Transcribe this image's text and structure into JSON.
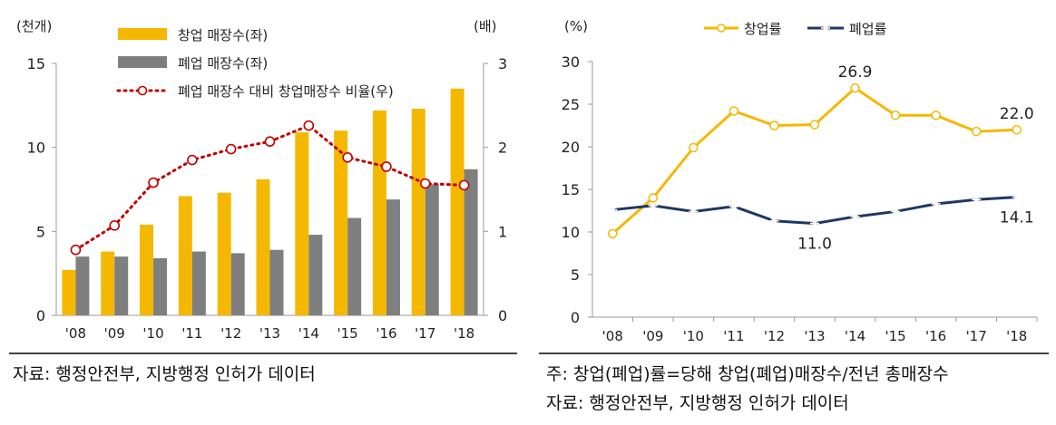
{
  "left": {
    "chart_data": {
      "type": "bar",
      "categories": [
        "'08",
        "'09",
        "'10",
        "'11",
        "'12",
        "'13",
        "'14",
        "'15",
        "'16",
        "'17",
        "'18"
      ],
      "y_left_unit": "(천개)",
      "y_right_unit": "(배)",
      "ylim_left": [
        0,
        15
      ],
      "ylim_right": [
        0,
        3
      ],
      "yticks_left": [
        "0",
        "5",
        "10",
        "15"
      ],
      "yticks_right": [
        "0",
        "1",
        "2",
        "3"
      ],
      "series": [
        {
          "name": "창업 매장수(좌)",
          "kind": "bar",
          "axis": "left",
          "color": "#F5B800",
          "values": [
            2.7,
            3.8,
            5.4,
            7.1,
            7.3,
            8.1,
            10.9,
            11.0,
            12.2,
            12.3,
            13.5
          ]
        },
        {
          "name": "폐업 매장수(좌)",
          "kind": "bar",
          "axis": "left",
          "color": "#7F7F7F",
          "values": [
            3.5,
            3.5,
            3.4,
            3.8,
            3.7,
            3.9,
            4.8,
            5.8,
            6.9,
            7.8,
            8.7
          ]
        },
        {
          "name": "폐업 매장수 대비 창업매장수 비율(우)",
          "kind": "line",
          "axis": "right",
          "color": "#C00000",
          "values": [
            0.78,
            1.07,
            1.58,
            1.85,
            1.98,
            2.07,
            2.26,
            1.88,
            1.77,
            1.57,
            1.55
          ]
        }
      ]
    },
    "source": "자료: 행정안전부, 지방행정 인허가 데이터"
  },
  "right": {
    "chart_data": {
      "type": "line",
      "categories": [
        "'08",
        "'09",
        "'10",
        "'11",
        "'12",
        "'13",
        "'14",
        "'15",
        "'16",
        "'17",
        "'18"
      ],
      "y_unit": "(%)",
      "ylim": [
        0,
        30
      ],
      "yticks": [
        "0",
        "5",
        "10",
        "15",
        "20",
        "25",
        "30"
      ],
      "series": [
        {
          "name": "창업률",
          "color": "#F5B800",
          "marker": "circle",
          "values": [
            9.8,
            14.0,
            19.9,
            24.2,
            22.5,
            22.6,
            26.9,
            23.7,
            23.7,
            21.8,
            22.0
          ]
        },
        {
          "name": "폐업률",
          "color": "#1F3864",
          "marker": "star",
          "values": [
            12.6,
            13.1,
            12.4,
            13.0,
            11.3,
            11.0,
            11.8,
            12.4,
            13.3,
            13.8,
            14.1
          ]
        }
      ],
      "annotations": [
        {
          "text": "26.9",
          "series": 0,
          "index": 6,
          "place": "above"
        },
        {
          "text": "22.0",
          "series": 0,
          "index": 10,
          "place": "above"
        },
        {
          "text": "11.0",
          "series": 1,
          "index": 5,
          "place": "below"
        },
        {
          "text": "14.1",
          "series": 1,
          "index": 10,
          "place": "below"
        }
      ]
    },
    "note": "주: 창업(폐업)률=당해 창업(폐업)매장수/전년 총매장수",
    "source": "자료: 행정안전부, 지방행정 인허가 데이터"
  }
}
